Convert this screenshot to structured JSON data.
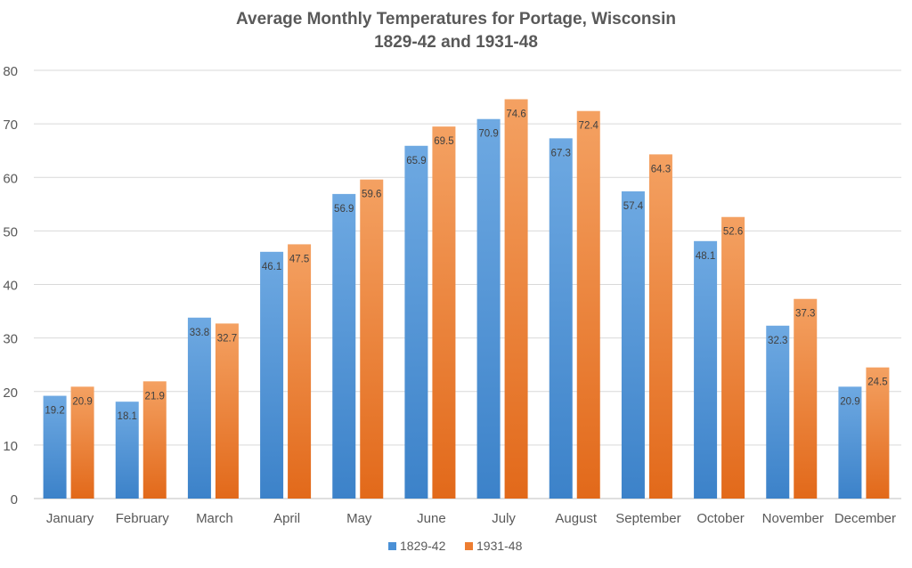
{
  "chart_data": {
    "type": "bar",
    "title": "Average Monthly Temperatures for Portage, Wisconsin",
    "subtitle": "1829-42 and 1931-48",
    "xlabel": "",
    "ylabel": "",
    "ylim": [
      0,
      80
    ],
    "yticks": [
      0,
      10,
      20,
      30,
      40,
      50,
      60,
      70,
      80
    ],
    "grid": true,
    "legend_position": "bottom",
    "categories": [
      "January",
      "February",
      "March",
      "April",
      "May",
      "June",
      "July",
      "August",
      "September",
      "October",
      "November",
      "December"
    ],
    "series": [
      {
        "name": "1829-42",
        "color": "#4a90d6",
        "values": [
          19.2,
          18.1,
          33.8,
          46.1,
          56.9,
          65.9,
          70.9,
          67.3,
          57.4,
          48.1,
          32.3,
          20.9
        ]
      },
      {
        "name": "1931-48",
        "color": "#ed7d31",
        "values": [
          20.9,
          21.9,
          32.7,
          47.5,
          59.6,
          69.5,
          74.6,
          72.4,
          64.3,
          52.6,
          37.3,
          24.5
        ]
      }
    ]
  }
}
